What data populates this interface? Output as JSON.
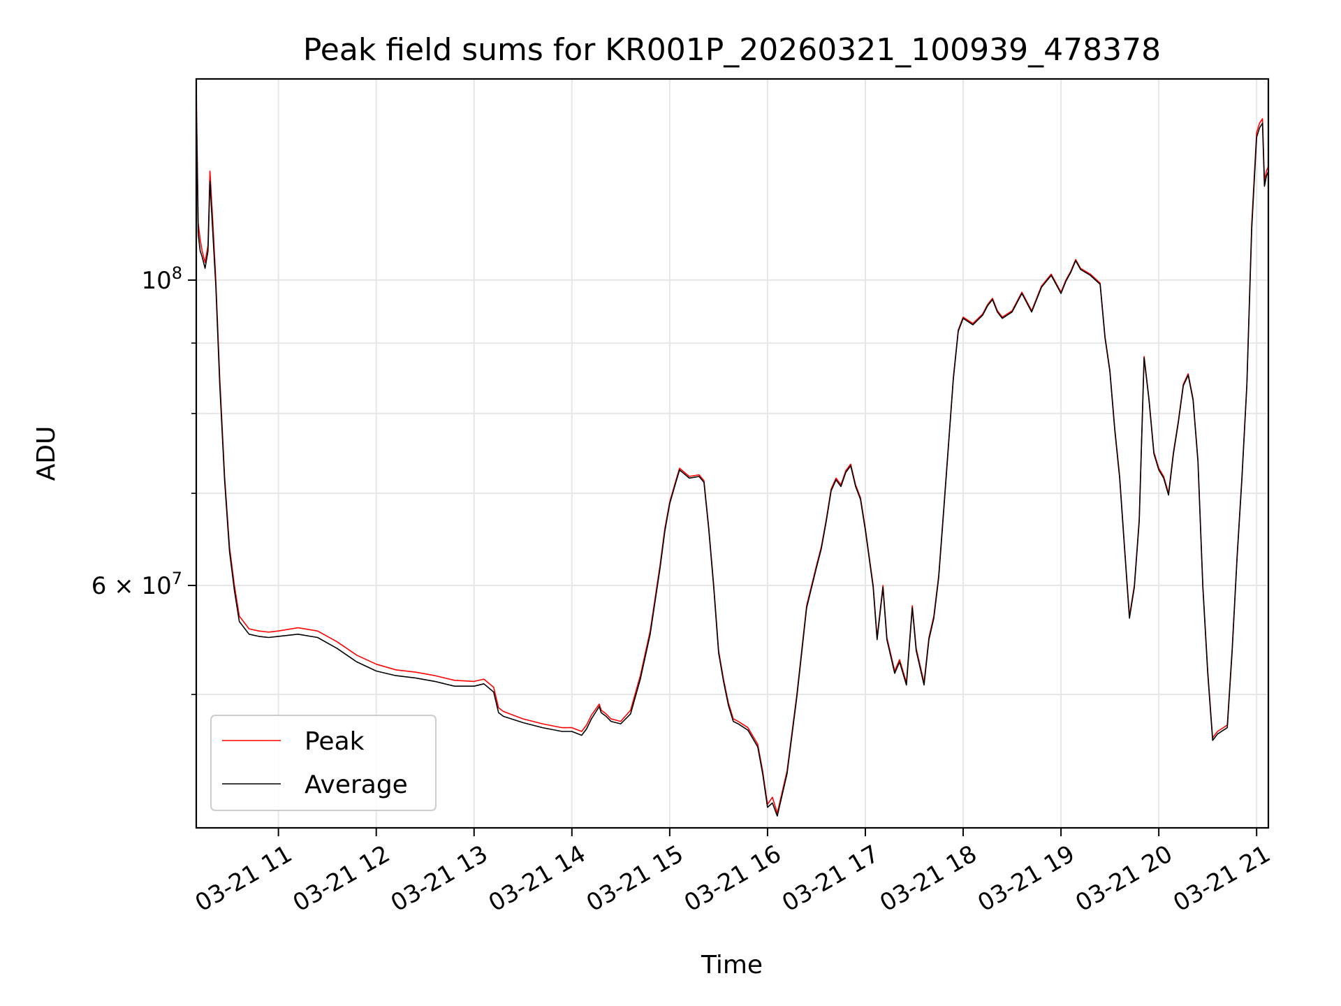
{
  "chart_data": {
    "type": "line",
    "title": "Peak field sums for KR001P_20260321_100939_478378",
    "xlabel": "Time",
    "ylabel": "ADU",
    "yscale": "log",
    "ylim": [
      40000000,
      140000000
    ],
    "xlim": [
      10.16,
      21.12
    ],
    "grid": true,
    "legend_position": "lower-left",
    "x_ticks": [
      {
        "value": 11,
        "label": "03-21 11"
      },
      {
        "value": 12,
        "label": "03-21 12"
      },
      {
        "value": 13,
        "label": "03-21 13"
      },
      {
        "value": 14,
        "label": "03-21 14"
      },
      {
        "value": 15,
        "label": "03-21 15"
      },
      {
        "value": 16,
        "label": "03-21 16"
      },
      {
        "value": 17,
        "label": "03-21 17"
      },
      {
        "value": 18,
        "label": "03-21 18"
      },
      {
        "value": 19,
        "label": "03-21 19"
      },
      {
        "value": 20,
        "label": "03-21 20"
      },
      {
        "value": 21,
        "label": "03-21 21"
      }
    ],
    "y_major_ticks": [
      {
        "value": 100000000,
        "base": "10",
        "exp": "8",
        "mant": ""
      },
      {
        "value": 60000000,
        "base": "10",
        "exp": "7",
        "mant": "6 × "
      }
    ],
    "y_minor_ticks": [
      50000000,
      70000000,
      80000000,
      90000000
    ],
    "series": [
      {
        "name": "Peak",
        "color": "#ff0000",
        "x": [
          10.16,
          10.18,
          10.2,
          10.22,
          10.25,
          10.28,
          10.3,
          10.33,
          10.36,
          10.4,
          10.45,
          10.5,
          10.55,
          10.6,
          10.7,
          10.8,
          10.9,
          11.0,
          11.2,
          11.4,
          11.6,
          11.8,
          12.0,
          12.2,
          12.4,
          12.6,
          12.8,
          13.0,
          13.1,
          13.2,
          13.25,
          13.3,
          13.5,
          13.7,
          13.9,
          14.0,
          14.1,
          14.15,
          14.2,
          14.28,
          14.3,
          14.35,
          14.4,
          14.5,
          14.6,
          14.7,
          14.8,
          14.9,
          14.95,
          15.0,
          15.05,
          15.1,
          15.15,
          15.2,
          15.3,
          15.35,
          15.4,
          15.45,
          15.5,
          15.55,
          15.6,
          15.65,
          15.7,
          15.8,
          15.9,
          15.95,
          16.0,
          16.05,
          16.1,
          16.2,
          16.3,
          16.4,
          16.5,
          16.55,
          16.6,
          16.65,
          16.7,
          16.75,
          16.8,
          16.85,
          16.9,
          16.95,
          17.0,
          17.08,
          17.12,
          17.18,
          17.22,
          17.3,
          17.35,
          17.42,
          17.48,
          17.52,
          17.6,
          17.65,
          17.7,
          17.75,
          17.8,
          17.85,
          17.9,
          17.95,
          18.0,
          18.1,
          18.2,
          18.25,
          18.3,
          18.35,
          18.4,
          18.5,
          18.6,
          18.7,
          18.8,
          18.9,
          19.0,
          19.05,
          19.1,
          19.15,
          19.2,
          19.3,
          19.4,
          19.45,
          19.5,
          19.55,
          19.6,
          19.65,
          19.7,
          19.75,
          19.8,
          19.85,
          19.9,
          19.95,
          20.0,
          20.05,
          20.1,
          20.15,
          20.2,
          20.25,
          20.3,
          20.35,
          20.4,
          20.45,
          20.5,
          20.55,
          20.6,
          20.7,
          20.75,
          20.8,
          20.85,
          20.9,
          20.95,
          21.0,
          21.03,
          21.06,
          21.08,
          21.1,
          21.12
        ],
        "values": [
          138000000,
          110000000,
          107000000,
          105000000,
          103000000,
          106000000,
          120000000,
          110000000,
          100000000,
          85000000,
          72000000,
          64000000,
          60000000,
          57000000,
          55800000,
          55600000,
          55500000,
          55600000,
          55900000,
          55600000,
          54600000,
          53400000,
          52600000,
          52100000,
          51900000,
          51600000,
          51200000,
          51100000,
          51300000,
          50600000,
          48900000,
          48600000,
          48000000,
          47600000,
          47300000,
          47300000,
          47000000,
          47500000,
          48300000,
          49200000,
          48700000,
          48400000,
          48000000,
          47800000,
          48700000,
          51600000,
          55600000,
          62000000,
          66000000,
          69000000,
          71000000,
          73000000,
          72500000,
          72000000,
          72200000,
          71500000,
          66000000,
          60000000,
          53800000,
          51300000,
          49300000,
          48000000,
          47800000,
          47300000,
          46000000,
          44000000,
          41600000,
          42100000,
          41000000,
          44000000,
          50000000,
          58000000,
          62000000,
          64000000,
          67000000,
          70500000,
          71800000,
          71000000,
          72700000,
          73500000,
          71000000,
          69500000,
          66000000,
          60000000,
          55000000,
          60000000,
          55000000,
          52000000,
          53000000,
          51000000,
          58000000,
          54000000,
          51000000,
          55000000,
          57000000,
          61000000,
          68000000,
          76000000,
          85000000,
          92000000,
          94000000,
          93000000,
          94500000,
          96000000,
          97000000,
          95000000,
          94000000,
          95000000,
          98000000,
          95000000,
          99000000,
          101000000,
          98000000,
          100000000,
          101500000,
          103500000,
          102000000,
          101000000,
          99500000,
          91000000,
          86000000,
          78000000,
          72000000,
          64000000,
          57000000,
          60000000,
          67000000,
          88000000,
          82000000,
          75000000,
          73000000,
          72000000,
          70000000,
          75000000,
          79000000,
          84000000,
          85500000,
          82000000,
          74000000,
          60000000,
          52000000,
          46500000,
          47000000,
          47500000,
          54000000,
          63000000,
          72000000,
          84000000,
          110000000,
          128000000,
          130000000,
          131000000,
          118000000,
          120000000,
          121000000
        ]
      },
      {
        "name": "Average",
        "color": "#000000",
        "x": [
          10.16,
          10.18,
          10.2,
          10.22,
          10.25,
          10.28,
          10.3,
          10.33,
          10.36,
          10.4,
          10.45,
          10.5,
          10.55,
          10.6,
          10.7,
          10.8,
          10.9,
          11.0,
          11.2,
          11.4,
          11.6,
          11.8,
          12.0,
          12.2,
          12.4,
          12.6,
          12.8,
          13.0,
          13.1,
          13.2,
          13.25,
          13.3,
          13.5,
          13.7,
          13.9,
          14.0,
          14.1,
          14.15,
          14.2,
          14.28,
          14.3,
          14.35,
          14.4,
          14.5,
          14.6,
          14.7,
          14.8,
          14.9,
          14.95,
          15.0,
          15.05,
          15.1,
          15.15,
          15.2,
          15.3,
          15.35,
          15.4,
          15.45,
          15.5,
          15.55,
          15.6,
          15.65,
          15.7,
          15.8,
          15.9,
          15.95,
          16.0,
          16.05,
          16.1,
          16.2,
          16.3,
          16.4,
          16.5,
          16.55,
          16.6,
          16.65,
          16.7,
          16.75,
          16.8,
          16.85,
          16.9,
          16.95,
          17.0,
          17.08,
          17.12,
          17.18,
          17.22,
          17.3,
          17.35,
          17.42,
          17.48,
          17.52,
          17.6,
          17.65,
          17.7,
          17.75,
          17.8,
          17.85,
          17.9,
          17.95,
          18.0,
          18.1,
          18.2,
          18.25,
          18.3,
          18.35,
          18.4,
          18.5,
          18.6,
          18.7,
          18.8,
          18.9,
          19.0,
          19.05,
          19.1,
          19.15,
          19.2,
          19.3,
          19.4,
          19.45,
          19.5,
          19.55,
          19.6,
          19.65,
          19.7,
          19.75,
          19.8,
          19.85,
          19.9,
          19.95,
          20.0,
          20.05,
          20.1,
          20.15,
          20.2,
          20.25,
          20.3,
          20.35,
          20.4,
          20.45,
          20.5,
          20.55,
          20.6,
          20.7,
          20.75,
          20.8,
          20.85,
          20.9,
          20.95,
          21.0,
          21.03,
          21.06,
          21.08,
          21.1,
          21.12
        ],
        "values": [
          135000000,
          108000000,
          105000000,
          104000000,
          102000000,
          105000000,
          118000000,
          108000000,
          99000000,
          84000000,
          71500000,
          63500000,
          59500000,
          56500000,
          55300000,
          55100000,
          55000000,
          55100000,
          55300000,
          55000000,
          54000000,
          52800000,
          52000000,
          51600000,
          51400000,
          51100000,
          50700000,
          50700000,
          50900000,
          50200000,
          48500000,
          48200000,
          47700000,
          47300000,
          47000000,
          47000000,
          46700000,
          47200000,
          48000000,
          49000000,
          48500000,
          48200000,
          47800000,
          47600000,
          48400000,
          51300000,
          55300000,
          61700000,
          65700000,
          68800000,
          70800000,
          72800000,
          72300000,
          71800000,
          72000000,
          71300000,
          65800000,
          59800000,
          53600000,
          51100000,
          49100000,
          47800000,
          47600000,
          47100000,
          45800000,
          43800000,
          41400000,
          41700000,
          40800000,
          43800000,
          49800000,
          57800000,
          61800000,
          63800000,
          66800000,
          70300000,
          71600000,
          70800000,
          72500000,
          73300000,
          70800000,
          69300000,
          65800000,
          59800000,
          54800000,
          59800000,
          54800000,
          51800000,
          52800000,
          50800000,
          57800000,
          53800000,
          50800000,
          54800000,
          56800000,
          60800000,
          67800000,
          75800000,
          84800000,
          91800000,
          93800000,
          92800000,
          94300000,
          95800000,
          96800000,
          94800000,
          93800000,
          94800000,
          97800000,
          94800000,
          98800000,
          100800000,
          97800000,
          99800000,
          101300000,
          103300000,
          101800000,
          100800000,
          99300000,
          90800000,
          85800000,
          77800000,
          71800000,
          63800000,
          56800000,
          59800000,
          66800000,
          87800000,
          81800000,
          74800000,
          72800000,
          71800000,
          69800000,
          74800000,
          78800000,
          83800000,
          85300000,
          81800000,
          73800000,
          59800000,
          51800000,
          46300000,
          46800000,
          47300000,
          53800000,
          62800000,
          71800000,
          83800000,
          109000000,
          127000000,
          129000000,
          130000000,
          117000000,
          119000000,
          120000000
        ]
      }
    ]
  }
}
